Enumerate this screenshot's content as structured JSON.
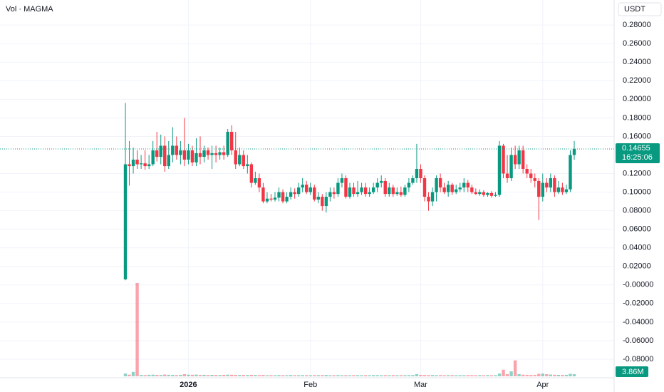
{
  "chart_data": {
    "type": "candlestick",
    "title": "Vol · MAGMA",
    "currency": "USDT",
    "up_color": "#089981",
    "down_color": "#f23645",
    "grid": true,
    "ylim": [
      -0.1,
      0.307
    ],
    "yticks": [
      {
        "value": 0.28,
        "label": "0.28000"
      },
      {
        "value": 0.26,
        "label": "0.26000"
      },
      {
        "value": 0.24,
        "label": "0.24000"
      },
      {
        "value": 0.22,
        "label": "0.22000"
      },
      {
        "value": 0.2,
        "label": "0.20000"
      },
      {
        "value": 0.18,
        "label": "0.18000"
      },
      {
        "value": 0.16,
        "label": "0.16000"
      },
      {
        "value": 0.12,
        "label": "0.12000"
      },
      {
        "value": 0.1,
        "label": "0.10000"
      },
      {
        "value": 0.08,
        "label": "0.08000"
      },
      {
        "value": 0.06,
        "label": "0.06000"
      },
      {
        "value": 0.04,
        "label": "0.04000"
      },
      {
        "value": 0.02,
        "label": "0.02000"
      },
      {
        "value": 0,
        "label": "-0.00000"
      },
      {
        "value": -0.02,
        "label": "-0.02000"
      },
      {
        "value": -0.04,
        "label": "-0.04000"
      },
      {
        "value": -0.06,
        "label": "-0.06000"
      },
      {
        "value": -0.08,
        "label": "-0.08000"
      }
    ],
    "xticks": [
      {
        "value": 16,
        "label": "2026"
      },
      {
        "value": 47,
        "label": "Feb"
      },
      {
        "value": 75,
        "label": "Mar"
      },
      {
        "value": 106,
        "label": "Apr"
      }
    ],
    "open": [
      0.006,
      0.13,
      0.128,
      0.135,
      0.13,
      0.131,
      0.128,
      0.13,
      0.145,
      0.138,
      0.15,
      0.128,
      0.14,
      0.15,
      0.14,
      0.145,
      0.135,
      0.145,
      0.132,
      0.142,
      0.138,
      0.145,
      0.14,
      0.142,
      0.14,
      0.143,
      0.14,
      0.165,
      0.145,
      0.13,
      0.14,
      0.128,
      0.13,
      0.11,
      0.115,
      0.105,
      0.09,
      0.093,
      0.092,
      0.094,
      0.1,
      0.09,
      0.095,
      0.1,
      0.098,
      0.105,
      0.108,
      0.1,
      0.105,
      0.092,
      0.095,
      0.085,
      0.095,
      0.1,
      0.098,
      0.11,
      0.115,
      0.095,
      0.105,
      0.098,
      0.1,
      0.105,
      0.098,
      0.1,
      0.105,
      0.11,
      0.112,
      0.098,
      0.105,
      0.098,
      0.1,
      0.097,
      0.105,
      0.11,
      0.115,
      0.125,
      0.115,
      0.095,
      0.09,
      0.1,
      0.115,
      0.105,
      0.1,
      0.108,
      0.1,
      0.103,
      0.105,
      0.11,
      0.105,
      0.1,
      0.098,
      0.1,
      0.097,
      0.099,
      0.096,
      0.097,
      0.15,
      0.12,
      0.115,
      0.14,
      0.13,
      0.145,
      0.125,
      0.12,
      0.115,
      0.112,
      0.095,
      0.11,
      0.105,
      0.115,
      0.1,
      0.105,
      0.1,
      0.103,
      0.14
    ],
    "high": [
      0.196,
      0.155,
      0.148,
      0.145,
      0.14,
      0.145,
      0.14,
      0.155,
      0.165,
      0.162,
      0.16,
      0.155,
      0.17,
      0.16,
      0.155,
      0.18,
      0.152,
      0.15,
      0.158,
      0.16,
      0.15,
      0.148,
      0.15,
      0.15,
      0.148,
      0.15,
      0.168,
      0.172,
      0.165,
      0.148,
      0.145,
      0.14,
      0.132,
      0.122,
      0.12,
      0.11,
      0.1,
      0.098,
      0.1,
      0.105,
      0.103,
      0.1,
      0.105,
      0.104,
      0.11,
      0.115,
      0.112,
      0.11,
      0.108,
      0.1,
      0.098,
      0.1,
      0.105,
      0.105,
      0.115,
      0.12,
      0.118,
      0.11,
      0.11,
      0.112,
      0.11,
      0.11,
      0.105,
      0.11,
      0.115,
      0.118,
      0.115,
      0.11,
      0.108,
      0.105,
      0.106,
      0.108,
      0.115,
      0.118,
      0.152,
      0.13,
      0.118,
      0.1,
      0.105,
      0.118,
      0.12,
      0.11,
      0.112,
      0.11,
      0.108,
      0.11,
      0.115,
      0.113,
      0.108,
      0.104,
      0.103,
      0.102,
      0.1,
      0.101,
      0.1,
      0.155,
      0.152,
      0.14,
      0.148,
      0.15,
      0.15,
      0.15,
      0.13,
      0.125,
      0.12,
      0.115,
      0.12,
      0.115,
      0.12,
      0.118,
      0.112,
      0.11,
      0.108,
      0.145,
      0.155
    ],
    "low": [
      0.005,
      0.107,
      0.12,
      0.125,
      0.125,
      0.124,
      0.125,
      0.128,
      0.133,
      0.13,
      0.122,
      0.125,
      0.132,
      0.135,
      0.13,
      0.128,
      0.13,
      0.128,
      0.128,
      0.13,
      0.132,
      0.135,
      0.125,
      0.132,
      0.135,
      0.135,
      0.138,
      0.14,
      0.125,
      0.128,
      0.125,
      0.12,
      0.105,
      0.108,
      0.1,
      0.088,
      0.088,
      0.09,
      0.09,
      0.09,
      0.088,
      0.088,
      0.092,
      0.093,
      0.095,
      0.1,
      0.098,
      0.097,
      0.09,
      0.088,
      0.08,
      0.078,
      0.09,
      0.093,
      0.095,
      0.105,
      0.093,
      0.093,
      0.095,
      0.095,
      0.097,
      0.095,
      0.095,
      0.098,
      0.1,
      0.105,
      0.095,
      0.095,
      0.095,
      0.096,
      0.095,
      0.095,
      0.1,
      0.108,
      0.11,
      0.11,
      0.09,
      0.08,
      0.085,
      0.09,
      0.1,
      0.098,
      0.095,
      0.097,
      0.098,
      0.1,
      0.1,
      0.1,
      0.098,
      0.097,
      0.096,
      0.095,
      0.095,
      0.094,
      0.095,
      0.095,
      0.115,
      0.11,
      0.112,
      0.125,
      0.125,
      0.12,
      0.115,
      0.11,
      0.105,
      0.07,
      0.09,
      0.1,
      0.1,
      0.095,
      0.098,
      0.097,
      0.098,
      0.1,
      0.135
    ],
    "close": [
      0.13,
      0.128,
      0.135,
      0.13,
      0.131,
      0.128,
      0.13,
      0.145,
      0.138,
      0.15,
      0.128,
      0.14,
      0.15,
      0.14,
      0.145,
      0.135,
      0.145,
      0.132,
      0.142,
      0.138,
      0.145,
      0.14,
      0.142,
      0.14,
      0.143,
      0.14,
      0.165,
      0.145,
      0.13,
      0.14,
      0.128,
      0.13,
      0.11,
      0.115,
      0.105,
      0.09,
      0.093,
      0.092,
      0.094,
      0.1,
      0.09,
      0.095,
      0.1,
      0.098,
      0.105,
      0.108,
      0.1,
      0.105,
      0.092,
      0.095,
      0.085,
      0.095,
      0.1,
      0.098,
      0.11,
      0.115,
      0.095,
      0.105,
      0.098,
      0.1,
      0.105,
      0.098,
      0.1,
      0.105,
      0.11,
      0.112,
      0.098,
      0.105,
      0.098,
      0.1,
      0.097,
      0.105,
      0.11,
      0.115,
      0.125,
      0.115,
      0.095,
      0.09,
      0.1,
      0.115,
      0.105,
      0.1,
      0.108,
      0.1,
      0.103,
      0.105,
      0.11,
      0.105,
      0.1,
      0.098,
      0.1,
      0.097,
      0.099,
      0.096,
      0.097,
      0.15,
      0.12,
      0.115,
      0.14,
      0.13,
      0.145,
      0.125,
      0.12,
      0.115,
      0.112,
      0.095,
      0.11,
      0.105,
      0.115,
      0.1,
      0.105,
      0.1,
      0.103,
      0.14,
      0.14655
    ],
    "volume": {
      "values": [
        5000000,
        3000000,
        8000000,
        170000000,
        2500000,
        2200000,
        2800000,
        3000000,
        2600000,
        2400000,
        3200000,
        2800000,
        2500000,
        2300000,
        2600000,
        4000000,
        3000000,
        2800000,
        3100000,
        2500000,
        2700000,
        2400000,
        2600000,
        2500000,
        2300000,
        2600000,
        3000000,
        2800000,
        2600000,
        2400000,
        2500000,
        2300000,
        2600000,
        2400000,
        2200000,
        2500000,
        2000000,
        2100000,
        2000000,
        2200000,
        2100000,
        2000000,
        2300000,
        2100000,
        2000000,
        2200000,
        2100000,
        2000000,
        2200000,
        2100000,
        2300000,
        2400000,
        2000000,
        2100000,
        2200000,
        2000000,
        2100000,
        2000000,
        2200000,
        2100000,
        2000000,
        2100000,
        2000000,
        2200000,
        2100000,
        2000000,
        2100000,
        2000000,
        2200000,
        2000000,
        2100000,
        2000000,
        2200000,
        2300000,
        4000000,
        2600000,
        2400000,
        2200000,
        2300000,
        2100000,
        2200000,
        2000000,
        2100000,
        2200000,
        2000000,
        2100000,
        2000000,
        2200000,
        2100000,
        2000000,
        2100000,
        2000000,
        2200000,
        2000000,
        2100000,
        5000000,
        12000000,
        4000000,
        9000000,
        29000000,
        4000000,
        3000000,
        2600000,
        2400000,
        2500000,
        4500000,
        5000000,
        3800000,
        3200000,
        2800000,
        2600000,
        2500000,
        2700000,
        4500000,
        3860000
      ],
      "value_labels": [
        null,
        null,
        null,
        null,
        null,
        null,
        null,
        null,
        null,
        null,
        null,
        null,
        null,
        null,
        null,
        null,
        null,
        null,
        null,
        null,
        null,
        null,
        null,
        null,
        null,
        null,
        null,
        null,
        null,
        null,
        null,
        null,
        null,
        null,
        null,
        null,
        null,
        null,
        null,
        null,
        null,
        null,
        null,
        null,
        null,
        null,
        null,
        null,
        null,
        null,
        null,
        null,
        null,
        null,
        null,
        null,
        null,
        null,
        null,
        null,
        null,
        null,
        null,
        null,
        null,
        null,
        null,
        null,
        null,
        null,
        null,
        null,
        null,
        null,
        null,
        null,
        null,
        null,
        null,
        null,
        null,
        null,
        null,
        null,
        null,
        null,
        null,
        null,
        null,
        null,
        null,
        null,
        null,
        null,
        null,
        null,
        null,
        null,
        null,
        null,
        null,
        null,
        null,
        null,
        null,
        null,
        null,
        null,
        null,
        null,
        null,
        null,
        null,
        null,
        "3.86M"
      ]
    },
    "countdown": "16:25:06"
  }
}
